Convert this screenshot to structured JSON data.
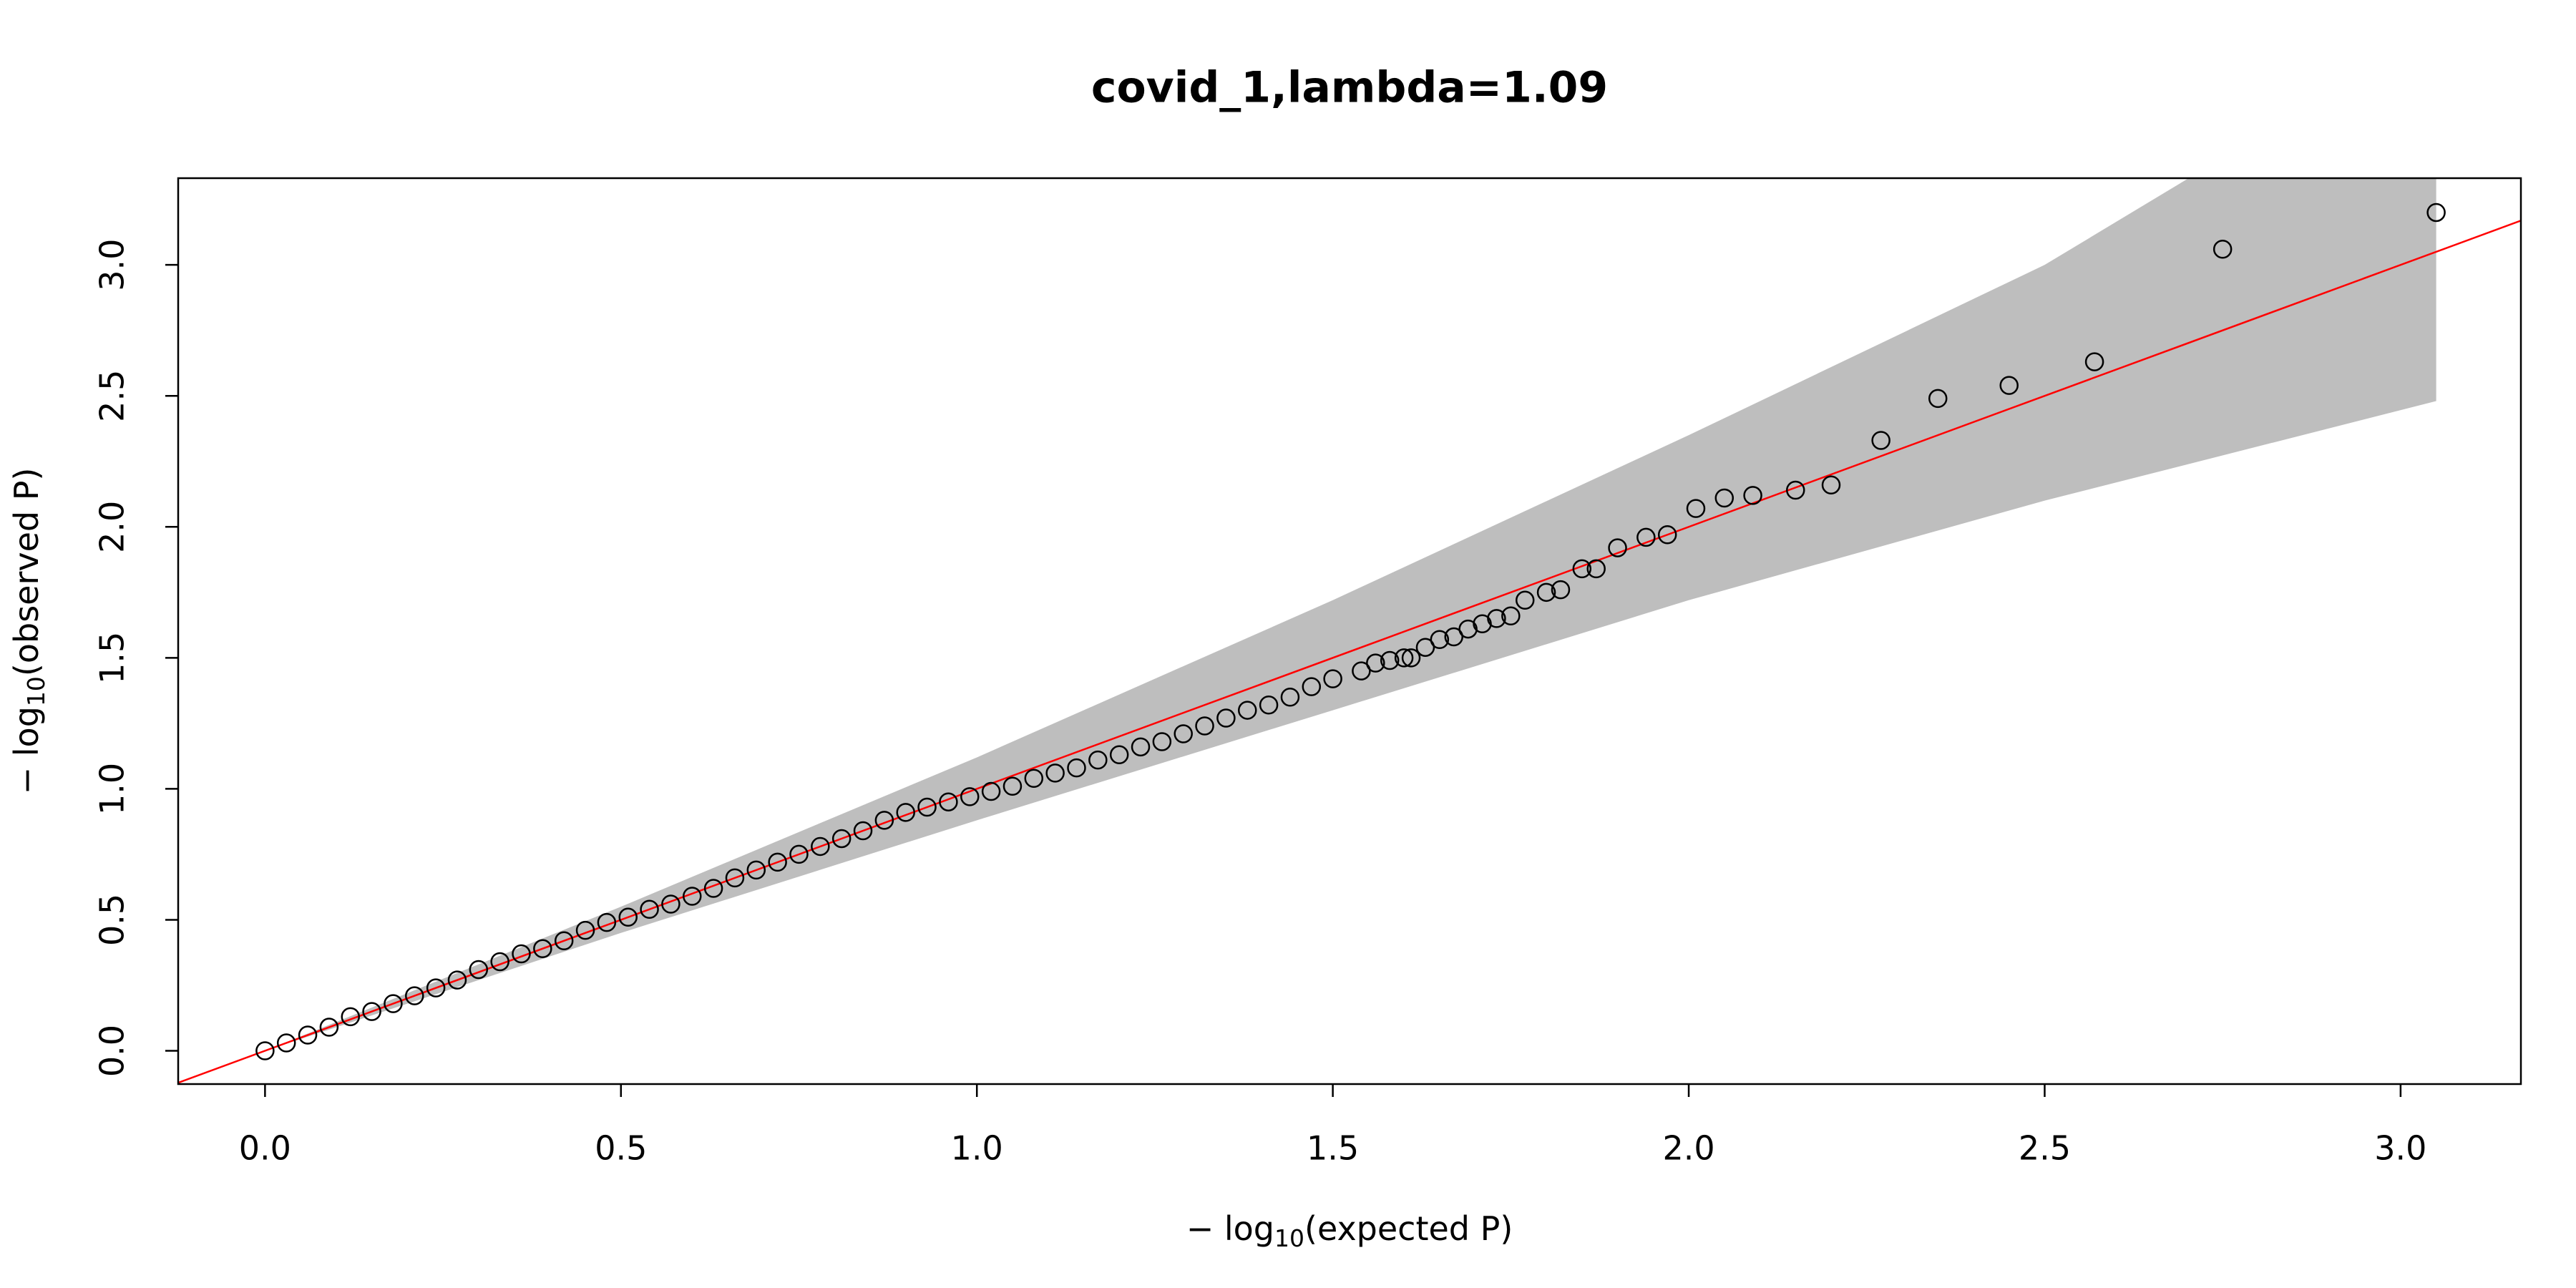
{
  "chart_data": {
    "type": "scatter",
    "title": "covid_1,lambda=1.09",
    "xlabel": {
      "prefix": "− log",
      "sub": "10",
      "suffix": "(expected P)"
    },
    "ylabel": {
      "prefix": "− log",
      "sub": "10",
      "suffix": "(observed P)"
    },
    "xlim": [
      -0.122,
      3.169
    ],
    "ylim": [
      -0.127,
      3.331
    ],
    "xticks": [
      {
        "value": 0,
        "label": "0.0"
      },
      0.5,
      {
        "value": 1,
        "label": "1.0"
      },
      1.5,
      {
        "value": 2,
        "label": "2.0"
      },
      2.5,
      {
        "value": 3,
        "label": "3.0"
      }
    ],
    "yticks": [
      {
        "value": 0,
        "label": "0.0"
      },
      0.5,
      {
        "value": 1,
        "label": "1.0"
      },
      1.5,
      {
        "value": 2,
        "label": "2.0"
      },
      2.5,
      {
        "value": 3,
        "label": "3.0"
      }
    ],
    "color": "#000000",
    "line_color": "#ff0000",
    "band": {
      "color": "#bebebe",
      "x": [
        0,
        0.5,
        1.0,
        1.5,
        2.0,
        2.5,
        3.05
      ],
      "lower": [
        0,
        0.45,
        0.88,
        1.3,
        1.72,
        2.1,
        2.48
      ],
      "upper": [
        0,
        0.55,
        1.12,
        1.72,
        2.35,
        3.0,
        3.9
      ]
    },
    "x": [
      0.0,
      0.03,
      0.06,
      0.09,
      0.12,
      0.15,
      0.18,
      0.21,
      0.24,
      0.27,
      0.3,
      0.33,
      0.36,
      0.39,
      0.42,
      0.45,
      0.48,
      0.51,
      0.54,
      0.57,
      0.6,
      0.63,
      0.66,
      0.69,
      0.72,
      0.75,
      0.78,
      0.81,
      0.84,
      0.87,
      0.9,
      0.93,
      0.96,
      0.99,
      1.02,
      1.05,
      1.08,
      1.11,
      1.14,
      1.17,
      1.2,
      1.23,
      1.26,
      1.29,
      1.32,
      1.35,
      1.38,
      1.41,
      1.44,
      1.47,
      1.5,
      1.54,
      1.56,
      1.58,
      1.6,
      1.61,
      1.63,
      1.65,
      1.67,
      1.69,
      1.71,
      1.73,
      1.75,
      1.77,
      1.8,
      1.82,
      1.85,
      1.87,
      1.9,
      1.94,
      1.97,
      2.01,
      2.05,
      2.09,
      2.15,
      2.2,
      2.27,
      2.35,
      2.45,
      2.57,
      2.75,
      3.05
    ],
    "values": [
      0.0,
      0.03,
      0.06,
      0.09,
      0.13,
      0.15,
      0.18,
      0.21,
      0.24,
      0.27,
      0.31,
      0.34,
      0.37,
      0.39,
      0.42,
      0.46,
      0.49,
      0.51,
      0.54,
      0.56,
      0.59,
      0.62,
      0.66,
      0.69,
      0.72,
      0.75,
      0.78,
      0.81,
      0.84,
      0.88,
      0.91,
      0.93,
      0.95,
      0.97,
      0.99,
      1.01,
      1.04,
      1.06,
      1.08,
      1.11,
      1.13,
      1.16,
      1.18,
      1.21,
      1.24,
      1.27,
      1.3,
      1.32,
      1.35,
      1.39,
      1.42,
      1.45,
      1.48,
      1.49,
      1.5,
      1.5,
      1.54,
      1.57,
      1.58,
      1.61,
      1.63,
      1.65,
      1.66,
      1.72,
      1.75,
      1.76,
      1.84,
      1.84,
      1.92,
      1.96,
      1.97,
      2.07,
      2.11,
      2.12,
      2.14,
      2.16,
      2.33,
      2.49,
      2.54,
      2.63,
      3.06,
      3.2
    ]
  }
}
